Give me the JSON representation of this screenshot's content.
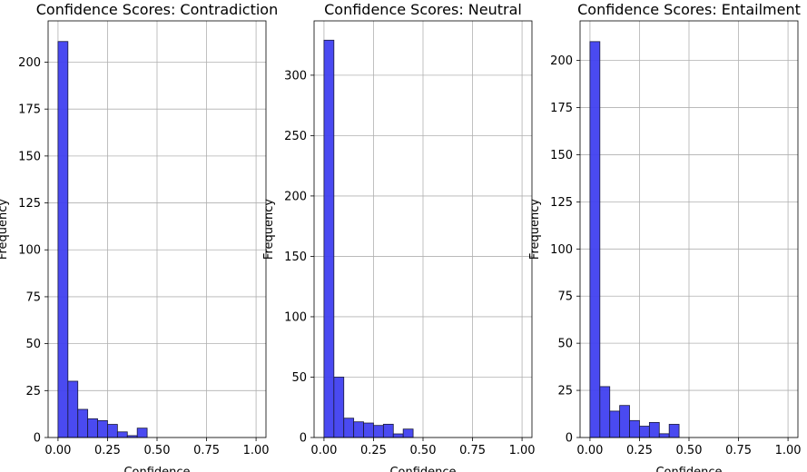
{
  "chart_data": [
    {
      "type": "bar",
      "title": "Confidence Scores: Contradiction",
      "xlabel": "Confidence",
      "ylabel": "Frequency",
      "xlim": [
        -0.05,
        1.05
      ],
      "ylim": [
        0,
        222
      ],
      "xticks": [
        0.0,
        0.25,
        0.5,
        0.75,
        1.0
      ],
      "xtick_labels": [
        "0.00",
        "0.25",
        "0.50",
        "0.75",
        "1.00"
      ],
      "yticks": [
        0,
        25,
        50,
        75,
        100,
        125,
        150,
        175,
        200
      ],
      "ytick_labels": [
        "0",
        "25",
        "50",
        "75",
        "100",
        "125",
        "150",
        "175",
        "200"
      ],
      "grid": true,
      "bin_edges": [
        0.0,
        0.05,
        0.1,
        0.15,
        0.2,
        0.25,
        0.3,
        0.35,
        0.4,
        0.45,
        0.5
      ],
      "values": [
        211,
        30,
        15,
        10,
        9,
        7,
        3,
        1,
        5,
        0
      ]
    },
    {
      "type": "bar",
      "title": "Confidence Scores: Neutral",
      "xlabel": "Confidence",
      "ylabel": "Frequency",
      "xlim": [
        -0.05,
        1.05
      ],
      "ylim": [
        0,
        345
      ],
      "xticks": [
        0.0,
        0.25,
        0.5,
        0.75,
        1.0
      ],
      "xtick_labels": [
        "0.00",
        "0.25",
        "0.50",
        "0.75",
        "1.00"
      ],
      "yticks": [
        0,
        50,
        100,
        150,
        200,
        250,
        300
      ],
      "ytick_labels": [
        "0",
        "50",
        "100",
        "150",
        "200",
        "250",
        "300"
      ],
      "grid": true,
      "bin_edges": [
        0.0,
        0.05,
        0.1,
        0.15,
        0.2,
        0.25,
        0.3,
        0.35,
        0.4,
        0.45,
        0.5
      ],
      "values": [
        329,
        50,
        16,
        13,
        12,
        10,
        11,
        3,
        7,
        0
      ]
    },
    {
      "type": "bar",
      "title": "Confidence Scores: Entailment",
      "xlabel": "Confidence",
      "ylabel": "Frequency",
      "xlim": [
        -0.05,
        1.05
      ],
      "ylim": [
        0,
        221
      ],
      "xticks": [
        0.0,
        0.25,
        0.5,
        0.75,
        1.0
      ],
      "xtick_labels": [
        "0.00",
        "0.25",
        "0.50",
        "0.75",
        "1.00"
      ],
      "yticks": [
        0,
        25,
        50,
        75,
        100,
        125,
        150,
        175,
        200
      ],
      "ytick_labels": [
        "0",
        "25",
        "50",
        "75",
        "100",
        "125",
        "150",
        "175",
        "200"
      ],
      "grid": true,
      "bin_edges": [
        0.0,
        0.05,
        0.1,
        0.15,
        0.2,
        0.25,
        0.3,
        0.35,
        0.4,
        0.45,
        0.5
      ],
      "values": [
        210,
        27,
        14,
        17,
        9,
        6,
        8,
        2,
        7,
        0
      ]
    }
  ],
  "colors": {
    "bar_fill": "#4040f0",
    "bar_edge": "#1a1a3a",
    "grid": "#b0b0b0",
    "axis": "#000000"
  }
}
